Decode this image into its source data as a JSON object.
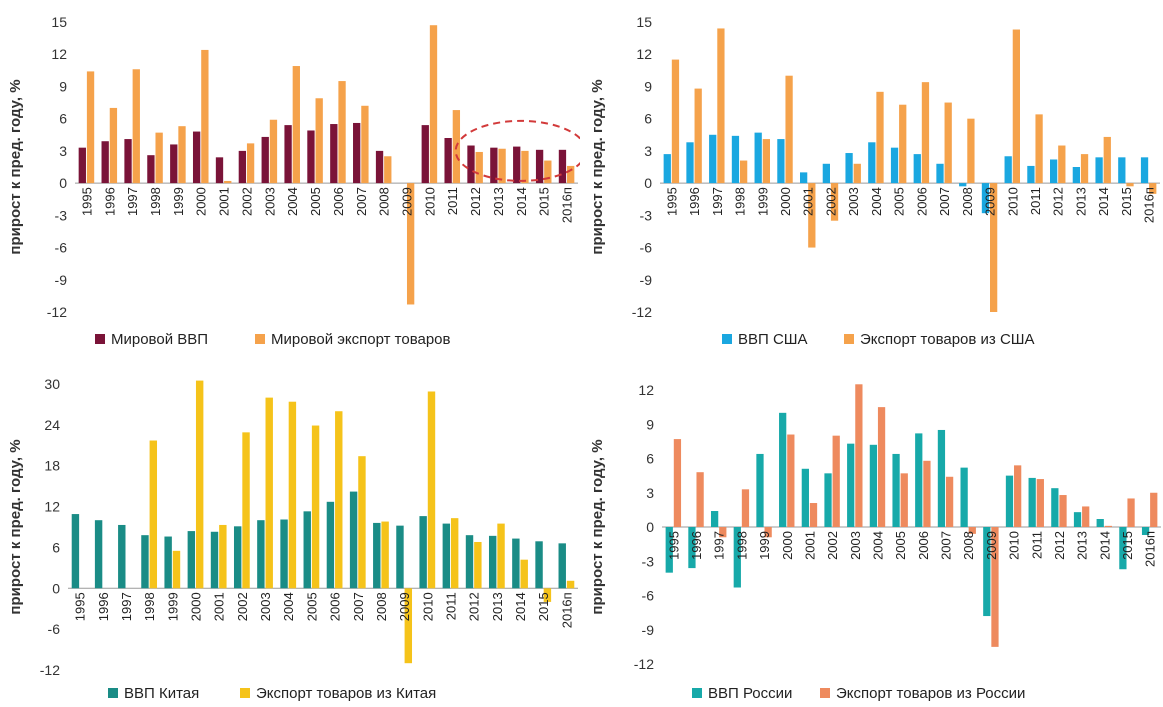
{
  "charts": [
    {
      "type": "bar",
      "ylabel": "прирост к пред. году, %",
      "ylim": [
        -12,
        15
      ],
      "yticks": [
        "-12",
        "-9",
        "-6",
        "-3",
        "0",
        "3",
        "6",
        "9",
        "12",
        "15"
      ],
      "ytick_values": [
        -12,
        -9,
        -6,
        -3,
        0,
        3,
        6,
        9,
        12,
        15
      ],
      "categories": [
        "1995",
        "1996",
        "1997",
        "1998",
        "1999",
        "2000",
        "2001",
        "2002",
        "2003",
        "2004",
        "2005",
        "2006",
        "2007",
        "2008",
        "2009",
        "2010",
        "2011",
        "2012",
        "2013",
        "2014",
        "2015",
        "2016п"
      ],
      "series": [
        {
          "name": "Мировой ВВП",
          "color": "#7a1338",
          "values": [
            3.3,
            3.9,
            4.1,
            2.6,
            3.6,
            4.8,
            2.4,
            3.0,
            4.3,
            5.4,
            4.9,
            5.5,
            5.6,
            3.0,
            0.0,
            5.4,
            4.2,
            3.5,
            3.3,
            3.4,
            3.1,
            3.1
          ]
        },
        {
          "name": "Мировой экспорт товаров",
          "color": "#f5a24b",
          "values": [
            10.4,
            7.0,
            10.6,
            4.7,
            5.3,
            12.4,
            0.2,
            3.7,
            5.9,
            10.9,
            7.9,
            9.5,
            7.2,
            2.5,
            -11.3,
            14.7,
            6.8,
            2.9,
            3.2,
            3.0,
            2.1,
            1.6
          ]
        }
      ],
      "annotation": "dashed-ellipse-2012-2016"
    },
    {
      "type": "bar",
      "ylabel": "прирост к пред. году, %",
      "ylim": [
        -12,
        15
      ],
      "yticks": [
        "-12",
        "-9",
        "-6",
        "-3",
        "0",
        "3",
        "6",
        "9",
        "12",
        "15"
      ],
      "ytick_values": [
        -12,
        -9,
        -6,
        -3,
        0,
        3,
        6,
        9,
        12,
        15
      ],
      "categories": [
        "1995",
        "1996",
        "1997",
        "1998",
        "1999",
        "2000",
        "2001",
        "2002",
        "2003",
        "2004",
        "2005",
        "2006",
        "2007",
        "2008",
        "2009",
        "2010",
        "2011",
        "2012",
        "2013",
        "2014",
        "2015",
        "2016п"
      ],
      "series": [
        {
          "name": "ВВП США",
          "color": "#1aa7e0",
          "values": [
            2.7,
            3.8,
            4.5,
            4.4,
            4.7,
            4.1,
            1.0,
            1.8,
            2.8,
            3.8,
            3.3,
            2.7,
            1.8,
            -0.3,
            -2.8,
            2.5,
            1.6,
            2.2,
            1.5,
            2.4,
            2.4,
            2.4
          ]
        },
        {
          "name": "Экспорт товаров из США",
          "color": "#f5a24b",
          "values": [
            11.5,
            8.8,
            14.4,
            2.1,
            4.1,
            10.0,
            -6.0,
            -3.5,
            1.8,
            8.5,
            7.3,
            9.4,
            7.5,
            6.0,
            -12.0,
            14.3,
            6.4,
            3.5,
            2.7,
            4.3,
            -0.3,
            -1.0
          ]
        }
      ]
    },
    {
      "type": "bar",
      "ylabel": "прирост к пред. году, %",
      "ylim": [
        -12,
        30
      ],
      "yticks": [
        "-12",
        "-6",
        "0",
        "6",
        "12",
        "18",
        "24",
        "30"
      ],
      "ytick_values": [
        -12,
        -6,
        0,
        6,
        12,
        18,
        24,
        30
      ],
      "categories": [
        "1995",
        "1996",
        "1997",
        "1998",
        "1999",
        "2000",
        "2001",
        "2002",
        "2003",
        "2004",
        "2005",
        "2006",
        "2007",
        "2008",
        "2009",
        "2010",
        "2011",
        "2012",
        "2013",
        "2014",
        "2015",
        "2016п"
      ],
      "series": [
        {
          "name": "ВВП Китая",
          "color": "#1a8c86",
          "values": [
            10.9,
            10.0,
            9.3,
            7.8,
            7.6,
            8.4,
            8.3,
            9.1,
            10.0,
            10.1,
            11.3,
            12.7,
            14.2,
            9.6,
            9.2,
            10.6,
            9.5,
            7.8,
            7.7,
            7.3,
            6.9,
            6.6
          ]
        },
        {
          "name": "Экспорт товаров из Китая",
          "color": "#f5c31a",
          "values": [
            0.0,
            0.0,
            0.0,
            21.7,
            5.5,
            30.5,
            9.3,
            22.9,
            28.0,
            27.4,
            23.9,
            26.0,
            19.4,
            9.8,
            -11.0,
            28.9,
            10.3,
            6.8,
            9.5,
            4.2,
            -2.0,
            1.1
          ]
        }
      ]
    },
    {
      "type": "bar",
      "ylabel": "прирост к пред. году, %",
      "ylim": [
        -12,
        12
      ],
      "yticks": [
        "-12",
        "-9",
        "-6",
        "-3",
        "0",
        "3",
        "6",
        "9",
        "12"
      ],
      "ytick_values": [
        -12,
        -9,
        -6,
        -3,
        0,
        3,
        6,
        9,
        12
      ],
      "categories": [
        "1995",
        "1996",
        "1997",
        "1998",
        "1999",
        "2000",
        "2001",
        "2002",
        "2003",
        "2004",
        "2005",
        "2006",
        "2007",
        "2008",
        "2009",
        "2010",
        "2011",
        "2012",
        "2013",
        "2014",
        "2015",
        "2016п"
      ],
      "series": [
        {
          "name": "ВВП России",
          "color": "#17a9a9",
          "values": [
            -4.0,
            -3.6,
            1.4,
            -5.3,
            6.4,
            10.0,
            5.1,
            4.7,
            7.3,
            7.2,
            6.4,
            8.2,
            8.5,
            5.2,
            -7.8,
            4.5,
            4.3,
            3.4,
            1.3,
            0.7,
            -3.7,
            -0.7
          ]
        },
        {
          "name": "Экспорт товаров из России",
          "color": "#ee8a5e",
          "values": [
            7.7,
            4.8,
            -0.9,
            3.3,
            -0.9,
            8.1,
            2.1,
            8.0,
            12.5,
            10.5,
            4.7,
            5.8,
            4.4,
            -0.6,
            -10.5,
            5.4,
            4.2,
            2.8,
            1.8,
            0.1,
            2.5,
            3.0
          ]
        }
      ]
    }
  ]
}
